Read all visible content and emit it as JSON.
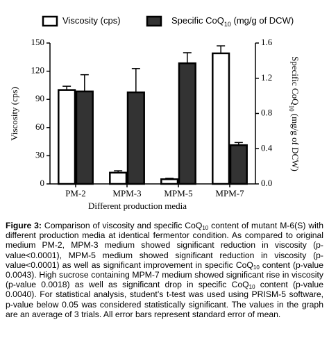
{
  "chart_data": {
    "type": "bar",
    "categories": [
      "PM-2",
      "MPM-3",
      "MPM-5",
      "MPM-7"
    ],
    "series": [
      {
        "name": "Viscosity (cps)",
        "color": "#ffffff",
        "values": [
          100,
          12,
          5,
          139
        ],
        "errors": [
          4,
          2,
          1,
          8
        ]
      },
      {
        "name": "Specific CoQ10 (mg/g of DCW)",
        "color": "#333333",
        "axis": "y2",
        "values": [
          1.05,
          1.04,
          1.37,
          0.44
        ],
        "errors": [
          0.19,
          0.27,
          0.12,
          0.03
        ]
      }
    ],
    "xlabel": "Different production media",
    "ylabel": "Viscosity (cps)",
    "y2label": "Specific CoQ10 (mg/g of DCW)",
    "ylim": [
      0,
      150
    ],
    "yticks": [
      0,
      30,
      60,
      90,
      120,
      150
    ],
    "y2lim": [
      0,
      1.6
    ],
    "y2ticks": [
      {
        "value": 0,
        "label": "0.0"
      },
      0.4,
      0.8,
      1.2,
      1.6
    ],
    "grid": false
  },
  "caption": {
    "label": "Figure 3:",
    "text": "Comparison of viscosity and specific CoQ10 content of mutant M-6(S) with different production media at identical fermentor condition. As compared to original medium PM-2, MPM-3 medium showed significant reduction in viscosity (p-value<0.0001), MPM-5 medium showed significant reduction in viscosity (p-value<0.0001) as well as significant improvement in specific CoQ10 content (p-value 0.0043). High sucrose containing MPM-7 medium showed significant rise in viscosity (p-value 0.0018) as well as significant drop in specific CoQ10 content (p-value 0.0040). For statistical analysis, student’s t-test was used using PRISM-5 software, p-value below 0.05 was considered statistically significant. The values in the graph are an average of 3 trials. All error bars represent standard error of mean."
  }
}
